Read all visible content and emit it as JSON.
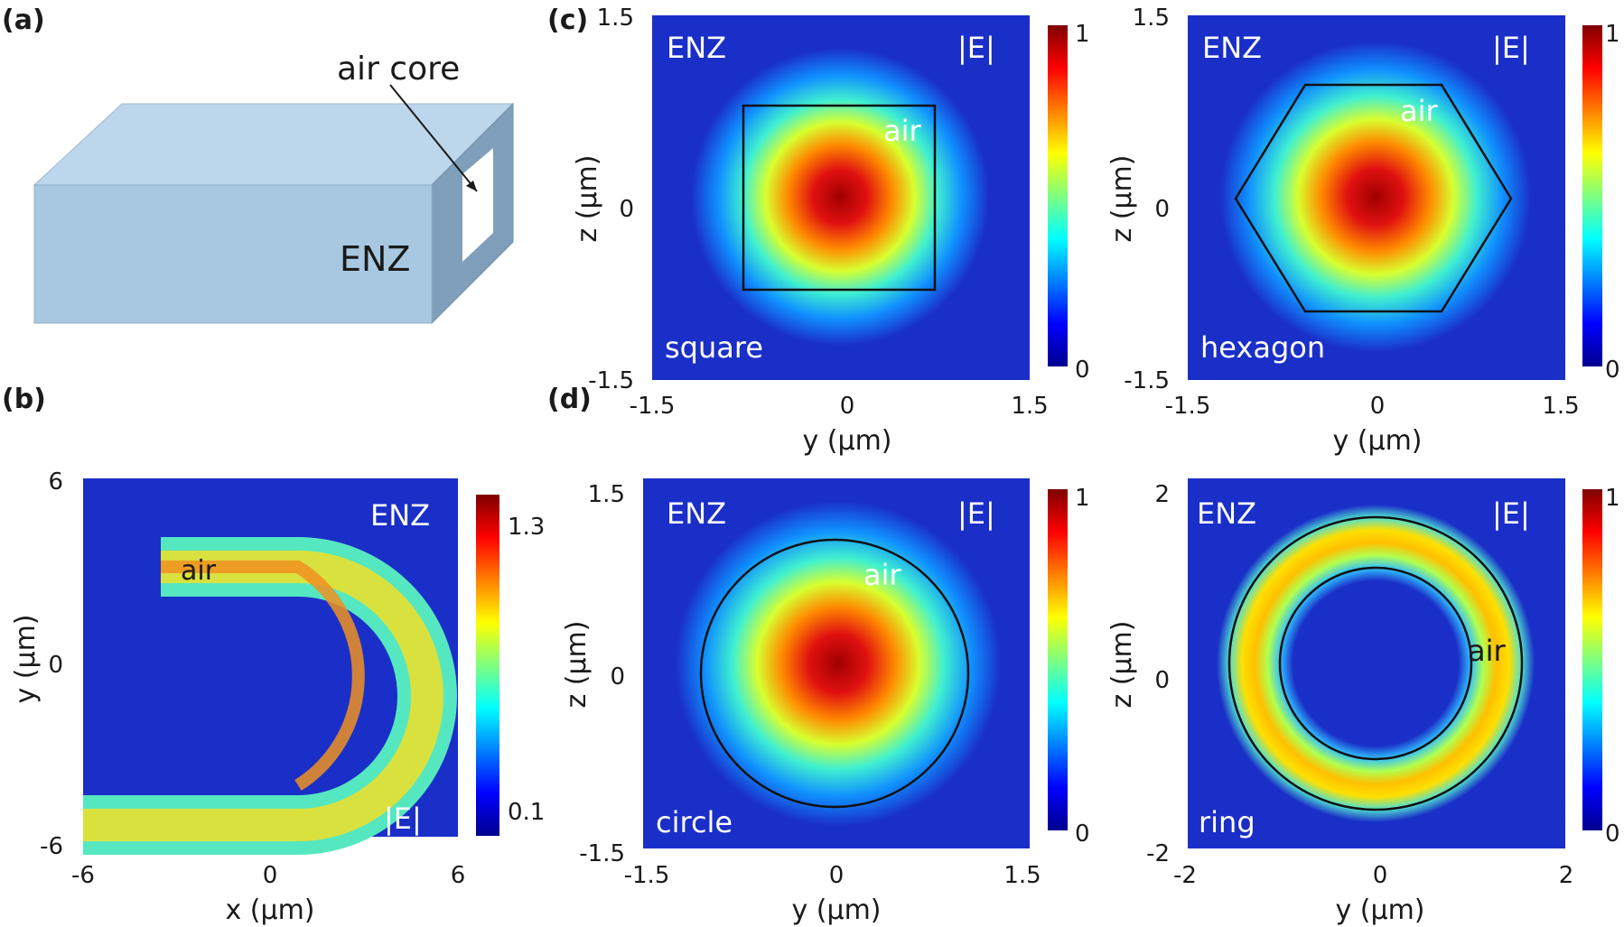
{
  "figure": {
    "panel_labels": {
      "a": "(a)",
      "b": "(b)",
      "c": "(c)",
      "d": "(d)"
    }
  },
  "panel_a": {
    "air_core_label": "air core",
    "enz_label": "ENZ"
  },
  "panel_b": {
    "enz_label": "ENZ",
    "air_label": "air",
    "field_label": "|E|",
    "xlabel": "x (µm)",
    "ylabel": "y (µm)",
    "xticks": [
      "-6",
      "0",
      "6"
    ],
    "yticks": [
      "6",
      "0",
      "-6"
    ],
    "colorbar_ticks": [
      "1.3",
      "0.1"
    ]
  },
  "panel_c_square": {
    "enz_label": "ENZ",
    "air_label": "air",
    "field_label": "|E|",
    "shape_label": "square",
    "xlabel": "y (µm)",
    "ylabel": "z (µm)",
    "xticks": [
      "-1.5",
      "0",
      "1.5"
    ],
    "yticks": [
      "1.5",
      "0",
      "-1.5"
    ],
    "colorbar_ticks": [
      "1",
      "0"
    ]
  },
  "panel_c_hexagon": {
    "enz_label": "ENZ",
    "air_label": "air",
    "field_label": "|E|",
    "shape_label": "hexagon",
    "xlabel": "y (µm)",
    "ylabel": "z (µm)",
    "xticks": [
      "-1.5",
      "0",
      "1.5"
    ],
    "yticks": [
      "1.5",
      "0",
      "-1.5"
    ],
    "colorbar_ticks": [
      "1",
      "0"
    ]
  },
  "panel_d_circle": {
    "enz_label": "ENZ",
    "air_label": "air",
    "field_label": "|E|",
    "shape_label": "circle",
    "xlabel": "y (µm)",
    "ylabel": "z (µm)",
    "xticks": [
      "-1.5",
      "0",
      "1.5"
    ],
    "yticks": [
      "1.5",
      "0",
      "-1.5"
    ],
    "colorbar_ticks": [
      "1",
      "0"
    ]
  },
  "panel_d_ring": {
    "enz_label": "ENZ",
    "air_label": "air",
    "field_label": "|E|",
    "shape_label": "ring",
    "xlabel": "y (µm)",
    "ylabel": "z (µm)",
    "xticks": [
      "-2",
      "0",
      "2"
    ],
    "yticks": [
      "2",
      "0",
      "-2"
    ],
    "colorbar_ticks": [
      "1",
      "0"
    ]
  },
  "colors": {
    "field_background": "#1a2fc8",
    "enz_block_face": "#a8c8e2",
    "enz_block_top": "#bcd6ec",
    "enz_block_side": "#7f9fba",
    "label_white": "#ffffff",
    "text_black": "#1a1a1a"
  }
}
